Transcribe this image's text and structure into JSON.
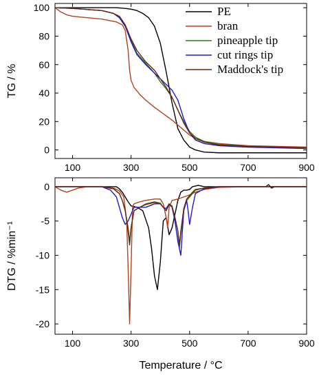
{
  "chart_data": [
    {
      "type": "line",
      "ylabel": "TG / %",
      "xlim": [
        40,
        900
      ],
      "ylim": [
        -6,
        103
      ],
      "xticks": [
        100,
        300,
        500,
        700,
        900
      ],
      "yticks": [
        0,
        20,
        40,
        60,
        80,
        100
      ],
      "legend": "top-right",
      "series": [
        {
          "name": "PE",
          "color": "#000000",
          "x": [
            40,
            100,
            200,
            250,
            280,
            300,
            320,
            340,
            360,
            380,
            400,
            420,
            440,
            460,
            480,
            500,
            520,
            550,
            600,
            700,
            800,
            900
          ],
          "y": [
            100,
            100,
            100,
            100,
            99.5,
            99,
            98,
            96,
            93,
            87,
            75,
            55,
            33,
            15,
            7,
            2,
            0,
            -1.5,
            -2,
            -2,
            -2,
            -2
          ]
        },
        {
          "name": "bran",
          "color": "#b5401c",
          "x": [
            40,
            60,
            80,
            100,
            150,
            200,
            250,
            270,
            280,
            290,
            295,
            300,
            310,
            330,
            350,
            380,
            400,
            420,
            440,
            460,
            480,
            500,
            520,
            550,
            600,
            700,
            800,
            900
          ],
          "y": [
            100,
            97,
            95,
            94,
            93,
            92,
            90,
            88,
            84,
            70,
            56,
            49,
            44,
            39,
            35,
            30,
            27,
            24,
            21,
            17.5,
            14,
            10.5,
            8,
            6,
            4.5,
            3,
            2.5,
            2
          ]
        },
        {
          "name": "pineapple tip",
          "color": "#2f7a1c",
          "x": [
            40,
            100,
            200,
            240,
            260,
            280,
            300,
            320,
            350,
            380,
            400,
            420,
            440,
            460,
            480,
            500,
            520,
            550,
            600,
            700,
            800,
            900
          ],
          "y": [
            100,
            99.5,
            98,
            96,
            93,
            87,
            77,
            68,
            61,
            54,
            48,
            43,
            37,
            28,
            20,
            13,
            9,
            6,
            4,
            2.5,
            2,
            1.5
          ]
        },
        {
          "name": "cut rings tip",
          "color": "#1a1ad0",
          "x": [
            40,
            100,
            200,
            240,
            260,
            280,
            300,
            320,
            350,
            380,
            400,
            420,
            440,
            460,
            480,
            500,
            520,
            550,
            600,
            700,
            800,
            900
          ],
          "y": [
            100,
            99.5,
            98,
            96,
            93,
            87,
            76,
            67,
            60,
            54,
            50,
            46,
            42,
            35,
            22,
            12,
            7,
            4.5,
            3,
            2,
            1.5,
            1
          ]
        },
        {
          "name": "Maddock's tip",
          "color": "#6b2510",
          "x": [
            40,
            100,
            200,
            240,
            260,
            280,
            300,
            320,
            350,
            380,
            400,
            420,
            440,
            460,
            480,
            500,
            520,
            550,
            600,
            700,
            800,
            900
          ],
          "y": [
            100,
            99.5,
            98,
            96,
            94,
            88,
            78,
            70,
            62,
            56,
            50,
            44,
            37,
            28,
            19,
            12,
            8,
            5.5,
            3.5,
            2.5,
            2,
            1.5
          ]
        }
      ]
    },
    {
      "type": "line",
      "xlabel": "Temperature / °C",
      "ylabel": "DTG / %min⁻¹",
      "xlim": [
        40,
        900
      ],
      "ylim": [
        -21.5,
        1.3
      ],
      "xticks": [
        100,
        300,
        500,
        700,
        900
      ],
      "yticks": [
        0,
        -5,
        -10,
        -15,
        -20
      ],
      "series": [
        {
          "name": "PE",
          "color": "#000000",
          "x": [
            40,
            200,
            250,
            260,
            270,
            280,
            290,
            300,
            320,
            340,
            360,
            370,
            380,
            390,
            400,
            410,
            420,
            430,
            440,
            450,
            460,
            470,
            480,
            490,
            500,
            510,
            530,
            550,
            600,
            700,
            760,
            770,
            780,
            790,
            800,
            900
          ],
          "y": [
            0,
            0,
            0,
            -0.3,
            -0.8,
            -1.5,
            -2.2,
            -2.8,
            -3,
            -3.5,
            -6,
            -9,
            -13,
            -15,
            -11,
            -5,
            -4.5,
            -7,
            -6,
            -4,
            -2,
            -0.8,
            -0.5,
            -0.5,
            -0.4,
            0,
            0.2,
            0,
            0,
            0,
            0,
            0.3,
            -0.2,
            0,
            0,
            0
          ]
        },
        {
          "name": "bran",
          "color": "#b5401c",
          "x": [
            40,
            60,
            80,
            100,
            120,
            150,
            200,
            240,
            260,
            275,
            285,
            290,
            295,
            300,
            305,
            310,
            330,
            350,
            380,
            400,
            410,
            420,
            425,
            430,
            440,
            460,
            480,
            500,
            520,
            550,
            600,
            700,
            800,
            900
          ],
          "y": [
            0,
            -0.5,
            -0.8,
            -0.5,
            -0.2,
            0,
            0,
            -0.2,
            -0.6,
            -1.5,
            -5,
            -12,
            -20,
            -12,
            -3,
            -2.5,
            -2.2,
            -2,
            -1.8,
            -1.8,
            -2.5,
            -4.5,
            -6,
            -3,
            -2,
            -1.8,
            -1.5,
            -1.2,
            -0.8,
            -0.4,
            -0.1,
            0,
            0,
            0
          ]
        },
        {
          "name": "pineapple tip",
          "color": "#2f7a1c",
          "x": [
            40,
            200,
            240,
            260,
            270,
            280,
            290,
            295,
            300,
            310,
            330,
            350,
            380,
            400,
            410,
            420,
            430,
            440,
            450,
            460,
            465,
            470,
            480,
            490,
            500,
            510,
            520,
            550,
            600,
            700,
            900
          ],
          "y": [
            0,
            0,
            -0.3,
            -1,
            -2,
            -3.5,
            -6,
            -8,
            -6,
            -3.5,
            -3,
            -2.5,
            -2.2,
            -2.4,
            -3,
            -3.5,
            -2.5,
            -2.8,
            -4.5,
            -6.5,
            -9,
            -7,
            -3.5,
            -2,
            -1.5,
            -1,
            -0.5,
            -0.2,
            0,
            0,
            0
          ]
        },
        {
          "name": "cut rings tip",
          "color": "#1a1ad0",
          "x": [
            40,
            200,
            230,
            250,
            260,
            270,
            280,
            290,
            300,
            310,
            330,
            350,
            380,
            400,
            410,
            420,
            430,
            440,
            450,
            460,
            470,
            480,
            490,
            495,
            500,
            510,
            520,
            550,
            600,
            700,
            900
          ],
          "y": [
            0,
            0,
            -0.5,
            -1.5,
            -3,
            -4.5,
            -5.5,
            -5,
            -4,
            -3,
            -3,
            -3,
            -2.5,
            -2.5,
            -3,
            -3.2,
            -2.5,
            -3,
            -5,
            -8,
            -10,
            -3.5,
            -2,
            -3.5,
            -5.5,
            -3,
            -1,
            -0.3,
            0,
            0,
            0
          ]
        },
        {
          "name": "Maddock's tip",
          "color": "#6b2510",
          "x": [
            40,
            200,
            240,
            260,
            270,
            280,
            290,
            295,
            300,
            310,
            330,
            350,
            380,
            400,
            410,
            420,
            430,
            440,
            450,
            460,
            465,
            470,
            480,
            490,
            500,
            510,
            520,
            550,
            600,
            700,
            900
          ],
          "y": [
            0,
            0,
            -0.3,
            -1,
            -2,
            -3.5,
            -6.5,
            -8.5,
            -6,
            -3.5,
            -3,
            -2.6,
            -2.3,
            -2.5,
            -3,
            -3.5,
            -2.6,
            -2.9,
            -4.5,
            -6.5,
            -8.5,
            -6.5,
            -3.2,
            -1.8,
            -1.3,
            -0.8,
            -0.4,
            -0.2,
            0,
            0,
            0
          ]
        }
      ]
    }
  ]
}
